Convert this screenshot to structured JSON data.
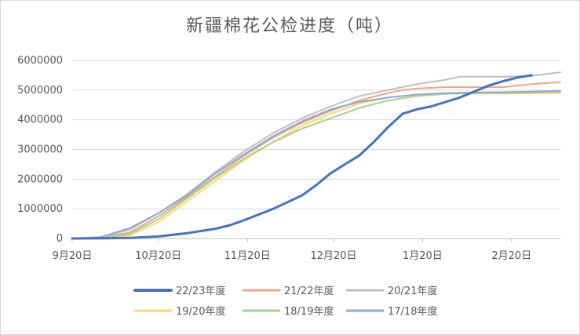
{
  "chart_data": {
    "type": "line",
    "title": "新疆棉花公检进度（吨）",
    "xlabel": "",
    "ylabel": "",
    "ylim": [
      0,
      6000000
    ],
    "yticks": [
      0,
      1000000,
      2000000,
      3000000,
      4000000,
      5000000,
      6000000
    ],
    "ytick_labels": [
      "0",
      "1000000",
      "2000000",
      "3000000",
      "4000000",
      "5000000",
      "6000000"
    ],
    "xlim": [
      0,
      170
    ],
    "xticks": [
      0,
      30,
      61,
      91,
      122,
      153
    ],
    "xtick_labels": [
      "9月20日",
      "10月20日",
      "11月20日",
      "12月20日",
      "1月20日",
      "2月20日"
    ],
    "legend_position": "bottom",
    "grid": true,
    "series": [
      {
        "name": "22/23年度",
        "color": "#4472C4",
        "width": 3,
        "x": [
          0,
          10,
          20,
          30,
          40,
          50,
          55,
          60,
          70,
          80,
          85,
          90,
          95,
          100,
          105,
          110,
          115,
          120,
          125,
          130,
          135,
          140,
          145,
          150,
          155,
          160
        ],
        "y": [
          0,
          5000,
          20000,
          70000,
          180000,
          330000,
          450000,
          620000,
          1000000,
          1450000,
          1800000,
          2200000,
          2500000,
          2800000,
          3250000,
          3750000,
          4200000,
          4350000,
          4450000,
          4600000,
          4750000,
          4950000,
          5150000,
          5300000,
          5420000,
          5500000
        ]
      },
      {
        "name": "21/22年度",
        "color": "#F4A582",
        "width": 2,
        "x": [
          0,
          10,
          20,
          30,
          40,
          50,
          60,
          70,
          80,
          90,
          100,
          110,
          115,
          120,
          130,
          140,
          150,
          160,
          170
        ],
        "y": [
          0,
          20000,
          200000,
          750000,
          1400000,
          2100000,
          2800000,
          3400000,
          3900000,
          4300000,
          4650000,
          4900000,
          5000000,
          5050000,
          5100000,
          5100000,
          5100000,
          5200000,
          5270000
        ]
      },
      {
        "name": "20/21年度",
        "color": "#BFBFBF",
        "width": 2,
        "x": [
          0,
          10,
          20,
          30,
          40,
          50,
          60,
          70,
          80,
          90,
          100,
          110,
          120,
          130,
          135,
          140,
          150,
          160,
          170
        ],
        "y": [
          0,
          40000,
          300000,
          850000,
          1500000,
          2250000,
          2950000,
          3550000,
          4050000,
          4450000,
          4800000,
          5000000,
          5200000,
          5350000,
          5450000,
          5450000,
          5450000,
          5480000,
          5600000
        ]
      },
      {
        "name": "19/20年度",
        "color": "#FFD966",
        "width": 2,
        "x": [
          0,
          10,
          20,
          30,
          40,
          50,
          60,
          70,
          80,
          90,
          100,
          110,
          120,
          130,
          140,
          150,
          160,
          170
        ],
        "y": [
          0,
          5000,
          100000,
          550000,
          1250000,
          1950000,
          2650000,
          3250000,
          3800000,
          4200000,
          4550000,
          4750000,
          4850000,
          4880000,
          4880000,
          4880000,
          4890000,
          4900000
        ]
      },
      {
        "name": "18/19年度",
        "color": "#A9D18E",
        "width": 2,
        "x": [
          0,
          10,
          20,
          30,
          40,
          50,
          60,
          70,
          80,
          90,
          100,
          110,
          120,
          130,
          140,
          150,
          160,
          170
        ],
        "y": [
          0,
          10000,
          150000,
          650000,
          1350000,
          2050000,
          2700000,
          3250000,
          3700000,
          4050000,
          4400000,
          4650000,
          4800000,
          4870000,
          4900000,
          4900000,
          4920000,
          4950000
        ]
      },
      {
        "name": "17/18年度",
        "color": "#8EA9DB",
        "width": 2,
        "x": [
          0,
          10,
          20,
          30,
          40,
          50,
          60,
          70,
          80,
          90,
          100,
          110,
          120,
          130,
          140,
          150,
          160,
          170
        ],
        "y": [
          0,
          50000,
          350000,
          850000,
          1450000,
          2200000,
          2850000,
          3450000,
          3950000,
          4350000,
          4600000,
          4750000,
          4850000,
          4900000,
          4920000,
          4930000,
          4950000,
          4970000
        ]
      }
    ]
  }
}
